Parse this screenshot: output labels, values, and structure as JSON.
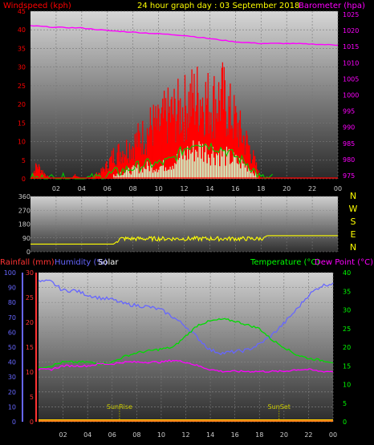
{
  "header": {
    "title": "24 hour graph day : 03 September 2018",
    "left_label": "Windspeed (kph)",
    "right_label": "Barometer (hpa)"
  },
  "colors": {
    "wind": "#ff0000",
    "gust": "#00cc00",
    "baro": "#ff00ff",
    "windtext": "#ff0000",
    "barotext": "#ff00ff",
    "dir": "#ffff00",
    "rain": "#ff3333",
    "humidity": "#6666ff",
    "solar": "#ffffff",
    "temp": "#00dd00",
    "dew": "#ff00ff",
    "tempaxis": "#00ff00",
    "rainaxis": "#6666ff",
    "sunline": "#999900"
  },
  "chart_data": [
    {
      "type": "area",
      "x_ticks": [
        "02",
        "04",
        "06",
        "08",
        "10",
        "12",
        "14",
        "16",
        "18",
        "20",
        "22",
        "00"
      ],
      "y_left": {
        "label": "Windspeed (kph)",
        "ticks": [
          0,
          5,
          10,
          15,
          20,
          25,
          30,
          35,
          40,
          45
        ],
        "ylim": [
          0,
          45
        ]
      },
      "y_right": {
        "label": "Barometer (hpa)",
        "ticks": [
          975,
          980,
          985,
          990,
          995,
          1000,
          1005,
          1010,
          1015,
          1020,
          1025
        ],
        "ylim": [
          974,
          1026
        ]
      },
      "series": [
        {
          "name": "Windspeed",
          "hours": [
            0,
            0.5,
            1,
            1.5,
            2,
            2.5,
            3,
            3.5,
            4,
            4.5,
            5,
            5.5,
            6,
            6.5,
            7,
            7.5,
            8,
            8.5,
            9,
            9.5,
            10,
            10.5,
            11,
            11.5,
            12,
            12.5,
            13,
            13.5,
            14,
            14.5,
            15,
            15.5,
            16,
            16.5,
            17,
            17.5,
            18,
            18.5,
            19
          ],
          "values": [
            0,
            4,
            2,
            0,
            0,
            0,
            0,
            1,
            0,
            0,
            1,
            2,
            4,
            7,
            8,
            9,
            10,
            12,
            13,
            16,
            15,
            18,
            19,
            20,
            21,
            23,
            24,
            24,
            22,
            23,
            24,
            20,
            17,
            13,
            10,
            5,
            0,
            0,
            0
          ]
        },
        {
          "name": "Gust",
          "hours": [
            0,
            5,
            6,
            7,
            8,
            9,
            10,
            11,
            12,
            13,
            14,
            15,
            16,
            17,
            18,
            19
          ],
          "values": [
            0,
            0,
            1,
            2,
            3,
            4,
            4,
            5,
            8,
            10,
            9,
            8,
            6,
            4,
            0,
            0
          ]
        },
        {
          "name": "Barometer",
          "hours": [
            0,
            2,
            4,
            6,
            8,
            10,
            12,
            14,
            16,
            18,
            20,
            22,
            24
          ],
          "values": [
            1021.5,
            1021,
            1020.8,
            1020,
            1019.5,
            1019,
            1018.5,
            1017.5,
            1016.5,
            1016,
            1016,
            1015.8,
            1015.5
          ]
        }
      ]
    },
    {
      "type": "line",
      "y_ticks": [
        0,
        90,
        180,
        270,
        360
      ],
      "ylim": [
        0,
        360
      ],
      "compass": [
        "N",
        "W",
        "S",
        "E",
        "N"
      ],
      "series": [
        {
          "name": "Wind Direction",
          "hours": [
            0,
            6.5,
            7,
            18,
            18.5,
            24
          ],
          "values": [
            50,
            50,
            85,
            85,
            105,
            105
          ]
        }
      ]
    },
    {
      "type": "line",
      "title_left": "Rainfall (mm)",
      "title_humidity": "Humidity (%)",
      "title_solar": "Solar",
      "title_temp": "Temperature (°C)",
      "title_dew": "Dew Point (°C)",
      "y_humidity": {
        "ticks": [
          0,
          10,
          20,
          30,
          40,
          50,
          60,
          70,
          80,
          90,
          100
        ],
        "ylim": [
          0,
          100
        ]
      },
      "y_rain": {
        "ticks": [
          0,
          5,
          10,
          15,
          20,
          25,
          30
        ],
        "ylim": [
          0,
          30
        ]
      },
      "y_temp": {
        "ticks": [
          0,
          5,
          10,
          15,
          20,
          25,
          30,
          35,
          40
        ],
        "ylim": [
          0,
          40
        ]
      },
      "x_ticks": [
        "02",
        "04",
        "06",
        "08",
        "10",
        "12",
        "14",
        "16",
        "18",
        "20",
        "22",
        "00"
      ],
      "annotations": [
        "SunRise",
        "SunSet"
      ],
      "sun_hours": [
        6.6,
        19.6
      ],
      "series": [
        {
          "name": "Humidity",
          "hours": [
            0,
            1,
            2,
            3,
            4,
            5,
            6,
            7,
            8,
            9,
            10,
            11,
            12,
            13,
            14,
            15,
            16,
            17,
            18,
            19,
            20,
            21,
            22,
            23,
            24
          ],
          "values": [
            94,
            94,
            88,
            88,
            85,
            83,
            82,
            79,
            78,
            77,
            75,
            70,
            64,
            56,
            48,
            46,
            47,
            48,
            52,
            58,
            66,
            75,
            85,
            91,
            93
          ]
        },
        {
          "name": "Temperature",
          "hours": [
            0,
            1,
            2,
            3,
            4,
            5,
            6,
            7,
            8,
            9,
            10,
            11,
            12,
            13,
            14,
            15,
            16,
            17,
            18,
            19,
            20,
            21,
            22,
            23,
            24
          ],
          "values": [
            14.5,
            15,
            16,
            16,
            16,
            15.5,
            16,
            17.5,
            18.5,
            19,
            19.5,
            20,
            23,
            26,
            27,
            27.5,
            27,
            26,
            25,
            22,
            20,
            18,
            17,
            16.5,
            16
          ]
        },
        {
          "name": "Dew Point",
          "hours": [
            0,
            1,
            2,
            3,
            4,
            5,
            6,
            7,
            8,
            9,
            10,
            11,
            12,
            13,
            14,
            15,
            16,
            17,
            18,
            19,
            20,
            21,
            22,
            23,
            24
          ],
          "values": [
            14,
            14,
            15,
            15,
            15,
            15.5,
            15.5,
            16,
            16,
            16,
            16,
            16.5,
            16,
            15,
            14,
            13.5,
            13.5,
            13.5,
            13.5,
            13.5,
            13.5,
            14,
            14,
            13.5,
            13.5
          ]
        }
      ]
    }
  ]
}
